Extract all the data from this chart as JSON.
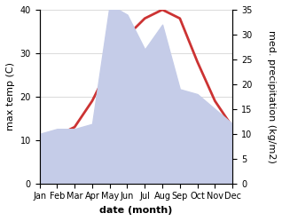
{
  "months": [
    "Jan",
    "Feb",
    "Mar",
    "Apr",
    "May",
    "Jun",
    "Jul",
    "Aug",
    "Sep",
    "Oct",
    "Nov",
    "Dec"
  ],
  "temperature": [
    10,
    11,
    13,
    19,
    27,
    34,
    38,
    40,
    38,
    28,
    19,
    13
  ],
  "precipitation": [
    10,
    11,
    11,
    12,
    36,
    34,
    27,
    32,
    19,
    18,
    15,
    12
  ],
  "temp_color": "#cc3333",
  "precip_fill_color": "#c5cce8",
  "background_color": "#ffffff",
  "ylabel_left": "max temp (C)",
  "ylabel_right": "med. precipitation (kg/m2)",
  "xlabel": "date (month)",
  "ylim_left": [
    0,
    40
  ],
  "ylim_right": [
    0,
    35
  ],
  "temp_linewidth": 2.0,
  "label_fontsize": 8,
  "tick_fontsize": 7
}
